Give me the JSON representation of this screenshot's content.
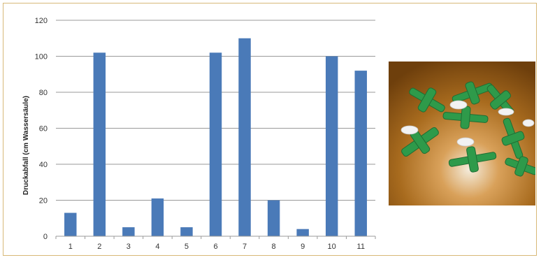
{
  "chart_data": {
    "type": "bar",
    "categories": [
      "1",
      "2",
      "3",
      "4",
      "5",
      "6",
      "7",
      "8",
      "9",
      "10",
      "11"
    ],
    "values": [
      13,
      102,
      5,
      21,
      5,
      102,
      110,
      20,
      4,
      100,
      92
    ],
    "title": "",
    "xlabel": "",
    "ylabel": "Druckabfall (cm Wassersäule)",
    "ylim": [
      0,
      120
    ],
    "yticks": [
      0,
      20,
      40,
      60,
      80,
      100,
      120
    ],
    "grid": true,
    "bar_color": "#4a7ab8"
  },
  "photo": {
    "description": "green-plastic-valve-parts-on-wooden-surface",
    "colors": {
      "valve": "#2e9a4a",
      "wood": "#a86b1e"
    }
  }
}
